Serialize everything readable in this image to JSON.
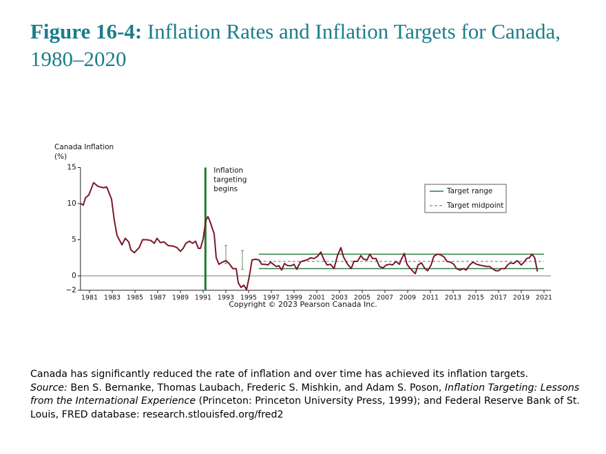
{
  "chart_data": {
    "type": "line",
    "title_label": "Figure 16-4:",
    "title": "Inflation Rates and Inflation Targets for Canada, 1980–2020",
    "y_label": [
      "Canada Inflation",
      "(%)"
    ],
    "annotation": [
      "Inflation",
      "targeting",
      "begins"
    ],
    "copyright": "Copyright © 2023 Pearson Canada Inc.",
    "xlim": [
      1980.2,
      2021.6
    ],
    "xticks": [
      1981,
      1983,
      1985,
      1987,
      1989,
      1991,
      1993,
      1995,
      1997,
      1999,
      2001,
      2003,
      2005,
      2007,
      2009,
      2011,
      2013,
      2015,
      2017,
      2019,
      2021
    ],
    "ylim": [
      -2,
      15
    ],
    "yticks": [
      {
        "value": -2,
        "label": "−2"
      },
      0,
      5,
      10,
      15
    ],
    "zero_line": true,
    "legend": "upper right",
    "series": [
      {
        "color": "#7a1526",
        "x": [
          1980.21,
          1980.45,
          1980.64,
          1980.94,
          1981.36,
          1981.73,
          1982.21,
          1982.52,
          1982.94,
          1983.18,
          1983.42,
          1983.85,
          1984.15,
          1984.45,
          1984.64,
          1984.94,
          1985.36,
          1985.67,
          1986.03,
          1986.39,
          1986.7,
          1986.94,
          1987.24,
          1987.55,
          1987.91,
          1988.39,
          1988.7,
          1989.0,
          1989.24,
          1989.48,
          1989.79,
          1990.09,
          1990.33,
          1990.58,
          1990.76,
          1991.0,
          1991.24,
          1991.42,
          1991.61,
          1991.97,
          1992.15,
          1992.39,
          1992.7,
          1993.0,
          1993.24,
          1993.61,
          1993.91,
          1994.09,
          1994.33,
          1994.58,
          1994.82,
          1995.06,
          1995.3,
          1995.61,
          1995.91,
          1996.15,
          1996.45,
          1996.7,
          1996.94,
          1997.18,
          1997.42,
          1997.67,
          1997.91,
          1998.15,
          1998.45,
          1998.76,
          1999.0,
          1999.24,
          1999.55,
          1999.85,
          2000.15,
          2000.45,
          2000.76,
          2001.06,
          2001.36,
          2001.61,
          2001.91,
          2002.21,
          2002.52,
          2002.82,
          2003.12,
          2003.36,
          2003.67,
          2004.03,
          2004.27,
          2004.58,
          2004.88,
          2005.12,
          2005.42,
          2005.67,
          2005.91,
          2006.21,
          2006.52,
          2006.82,
          2007.12,
          2007.42,
          2007.67,
          2007.97,
          2008.27,
          2008.45,
          2008.7,
          2008.94,
          2009.24,
          2009.48,
          2009.67,
          2009.91,
          2010.21,
          2010.52,
          2010.76,
          2011.06,
          2011.3,
          2011.61,
          2011.91,
          2012.21,
          2012.45,
          2012.76,
          2013.06,
          2013.3,
          2013.61,
          2013.91,
          2014.15,
          2014.45,
          2014.76,
          2015.06,
          2015.3,
          2015.61,
          2015.91,
          2016.21,
          2016.45,
          2016.76,
          2017.0,
          2017.24,
          2017.55,
          2017.79,
          2018.03,
          2018.33,
          2018.64,
          2019.0,
          2019.24,
          2019.48,
          2019.7,
          2019.94,
          2020.18,
          2020.42
        ],
        "values": [
          10.0,
          9.8,
          10.8,
          11.2,
          12.9,
          12.4,
          12.2,
          12.3,
          10.6,
          7.7,
          5.6,
          4.3,
          5.2,
          4.7,
          3.6,
          3.2,
          3.9,
          5.0,
          5.0,
          4.9,
          4.5,
          5.2,
          4.6,
          4.7,
          4.2,
          4.1,
          3.9,
          3.4,
          3.8,
          4.5,
          4.8,
          4.5,
          4.8,
          3.8,
          3.8,
          5.1,
          7.7,
          8.2,
          7.5,
          5.8,
          2.5,
          1.6,
          1.9,
          2.1,
          1.8,
          1.0,
          1.0,
          -0.95,
          -1.6,
          -1.3,
          -1.9,
          -0.1,
          2.2,
          2.3,
          2.2,
          1.6,
          1.6,
          1.5,
          1.9,
          1.6,
          1.3,
          1.4,
          0.8,
          1.7,
          1.4,
          1.4,
          1.6,
          0.9,
          1.9,
          2.1,
          2.2,
          2.5,
          2.4,
          2.7,
          3.3,
          2.3,
          1.5,
          1.6,
          1.0,
          2.8,
          3.9,
          2.6,
          1.7,
          1.0,
          2.0,
          2.0,
          2.8,
          2.3,
          2.2,
          3.0,
          2.4,
          2.4,
          1.3,
          1.1,
          1.5,
          1.6,
          1.5,
          2.0,
          1.6,
          2.3,
          3.1,
          1.6,
          1.0,
          0.6,
          0.3,
          1.5,
          1.8,
          1.0,
          0.7,
          1.5,
          2.7,
          3.0,
          2.9,
          2.6,
          2.0,
          1.9,
          1.6,
          1.0,
          0.8,
          1.0,
          0.8,
          1.5,
          1.9,
          1.6,
          1.5,
          1.4,
          1.3,
          1.3,
          1.0,
          0.7,
          0.7,
          1.0,
          1.0,
          1.5,
          1.8,
          1.7,
          2.1,
          1.5,
          1.9,
          2.4,
          2.5,
          3.0,
          2.5,
          0.6
        ]
      }
    ],
    "targeting_start": 1991.2,
    "targeting_color": "#1f7a2e",
    "early_targets": [
      {
        "x": 1993.0,
        "low": 1.7,
        "high": 4.2
      },
      {
        "x": 1994.45,
        "low": 0.9,
        "high": 3.5
      }
    ],
    "target_range": {
      "name": "Target range",
      "color": "#2a7a45",
      "low": 1,
      "high": 3,
      "start": 1995.9,
      "end": 2021
    },
    "target_midpoint": {
      "name": "Target midpoint",
      "color": "#666666",
      "value": 2
    }
  },
  "caption": {
    "note": "Canada has significantly reduced the rate of inflation and over time has achieved its inflation targets.",
    "source_label": "Source:",
    "authors": "Ben S. Bernanke, Thomas Laubach, Frederic S. Mishkin, and Adam S. Poson,",
    "book": "Inflation Targeting: Lessons from the International Experience",
    "rest": "(Princeton: Princeton University Press, 1999); and Federal Reserve Bank of St. Louis, FRED database: research.stlouisfed.org/fred2"
  }
}
